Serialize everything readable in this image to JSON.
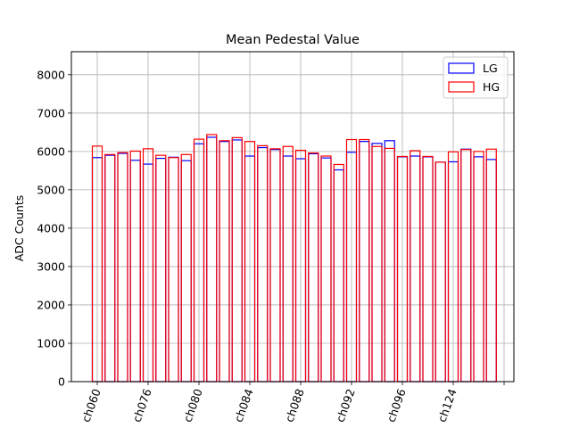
{
  "chart_data": {
    "type": "bar",
    "title": "Mean Pedestal Value",
    "xlabel": "",
    "ylabel": "ADC Counts",
    "ylim": [
      0,
      8600
    ],
    "yticks": [
      0,
      1000,
      2000,
      3000,
      4000,
      5000,
      6000,
      7000,
      8000
    ],
    "grid": true,
    "legend_position": "top-right",
    "xticks": [
      {
        "label": "ch060",
        "index": 0
      },
      {
        "label": "ch076",
        "index": 4
      },
      {
        "label": "ch080",
        "index": 8
      },
      {
        "label": "ch084",
        "index": 12
      },
      {
        "label": "ch088",
        "index": 16
      },
      {
        "label": "ch092",
        "index": 20
      },
      {
        "label": "ch096",
        "index": 24
      },
      {
        "label": "ch124",
        "index": 28
      },
      {
        "label": "",
        "index": 32
      }
    ],
    "series": [
      {
        "name": "LG",
        "color": "#0000ff",
        "values": [
          5840,
          5900,
          5950,
          5770,
          5670,
          5820,
          5850,
          5760,
          6200,
          6370,
          6260,
          6300,
          5880,
          6100,
          6050,
          5880,
          5810,
          5940,
          5830,
          5520,
          5980,
          6260,
          6210,
          6280,
          5860,
          5880,
          5860,
          5720,
          5730,
          6060,
          5860,
          5790
        ]
      },
      {
        "name": "HG",
        "color": "#ff0000",
        "values": [
          6140,
          5920,
          5970,
          6010,
          6070,
          5900,
          5840,
          5920,
          6320,
          6440,
          6280,
          6360,
          6260,
          6150,
          6070,
          6130,
          6030,
          5960,
          5880,
          5660,
          6310,
          6310,
          6130,
          6080,
          5870,
          6020,
          5870,
          5720,
          5990,
          6050,
          6000,
          6060
        ]
      }
    ]
  }
}
